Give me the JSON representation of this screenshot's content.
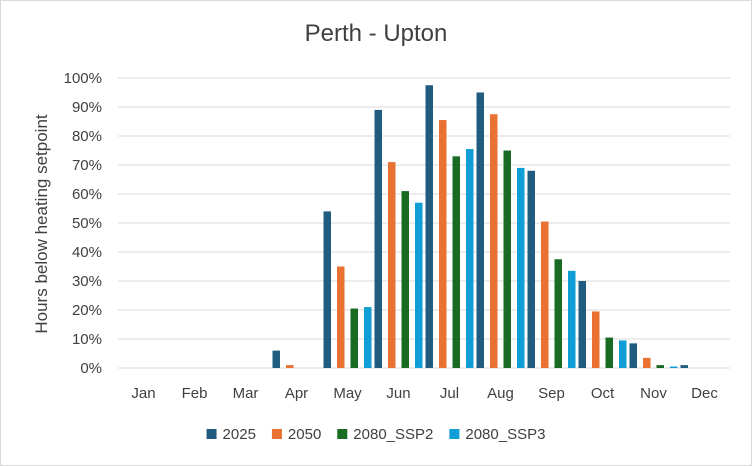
{
  "chart_data": {
    "type": "bar",
    "title": "Perth - Upton",
    "xlabel": "",
    "ylabel": "Hours below heating setpoint",
    "ylim": [
      0,
      100
    ],
    "yticks": [
      "0%",
      "10%",
      "20%",
      "30%",
      "40%",
      "50%",
      "60%",
      "70%",
      "80%",
      "90%",
      "100%"
    ],
    "grid": true,
    "legend_position": "bottom",
    "categories": [
      "Jan",
      "Feb",
      "Mar",
      "Apr",
      "May",
      "Jun",
      "Jul",
      "Aug",
      "Sep",
      "Oct",
      "Nov",
      "Dec"
    ],
    "series": [
      {
        "name": "2025",
        "color": "#1f5c80",
        "values": [
          0,
          0,
          0,
          6,
          54,
          89,
          97.5,
          95,
          68,
          30,
          8.5,
          1
        ]
      },
      {
        "name": "2050",
        "color": "#e97132",
        "values": [
          0,
          0,
          0,
          1,
          35,
          71,
          85.5,
          87.5,
          50.5,
          19.5,
          3.5,
          0
        ]
      },
      {
        "name": "2080_SSP2",
        "color": "#196b24",
        "values": [
          0,
          0,
          0,
          0,
          20.5,
          61,
          73,
          75,
          37.5,
          10.5,
          1,
          0
        ]
      },
      {
        "name": "2080_SSP3",
        "color": "#0f9ed5",
        "values": [
          0,
          0,
          0,
          0,
          21,
          57,
          75.5,
          69,
          33.5,
          9.5,
          0.5,
          0
        ]
      }
    ]
  }
}
